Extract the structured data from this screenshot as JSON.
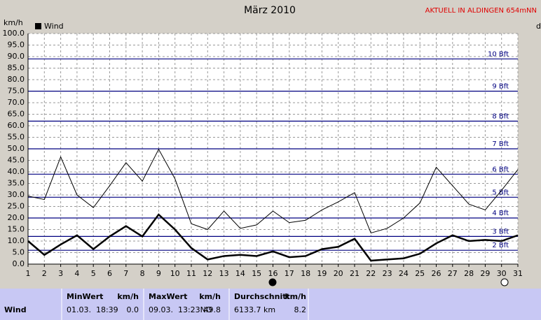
{
  "chart_data": {
    "type": "line",
    "title": "März 2010",
    "subtitle": "AKTUELL IN ALDINGEN 654mNN",
    "y_label": "km/h",
    "y2_label": "d",
    "x": [
      1,
      2,
      3,
      4,
      5,
      6,
      7,
      8,
      9,
      10,
      11,
      12,
      13,
      14,
      15,
      16,
      17,
      18,
      19,
      20,
      21,
      22,
      23,
      24,
      25,
      26,
      27,
      28,
      29,
      30,
      31
    ],
    "xlim": [
      1,
      31
    ],
    "xticks": [
      1,
      2,
      3,
      4,
      5,
      6,
      7,
      8,
      9,
      10,
      11,
      12,
      13,
      14,
      15,
      16,
      17,
      18,
      19,
      20,
      21,
      22,
      23,
      24,
      25,
      26,
      27,
      28,
      29,
      30,
      31
    ],
    "ylim": [
      0,
      100
    ],
    "yticks": [
      {
        "value": 0,
        "label": "0.0"
      },
      {
        "value": 5,
        "label": "5.0"
      },
      {
        "value": 10,
        "label": "10.0"
      },
      {
        "value": 15,
        "label": "15.0"
      },
      {
        "value": 20,
        "label": "20.0"
      },
      {
        "value": 25,
        "label": "25.0"
      },
      {
        "value": 30,
        "label": "30.0"
      },
      {
        "value": 35,
        "label": "35.0"
      },
      {
        "value": 40,
        "label": "40.0"
      },
      {
        "value": 45,
        "label": "45.0"
      },
      {
        "value": 50,
        "label": "50.0"
      },
      {
        "value": 55,
        "label": "55.0"
      },
      {
        "value": 60,
        "label": "60.0"
      },
      {
        "value": 65,
        "label": "65.0"
      },
      {
        "value": 70,
        "label": "70.0"
      },
      {
        "value": 75,
        "label": "75.0"
      },
      {
        "value": 80,
        "label": "80.0"
      },
      {
        "value": 85,
        "label": "85.0"
      },
      {
        "value": 90,
        "label": "90.0"
      },
      {
        "value": 95,
        "label": "95.0"
      },
      {
        "value": 100,
        "label": "100.0"
      }
    ],
    "grid": true,
    "reference_lines": [
      {
        "value": 6,
        "label": "2 Bft"
      },
      {
        "value": 12,
        "label": "3 Bft"
      },
      {
        "value": 20,
        "label": "4 Bft"
      },
      {
        "value": 29,
        "label": "5 Bft"
      },
      {
        "value": 39,
        "label": "6 Bft"
      },
      {
        "value": 50,
        "label": "7 Bft"
      },
      {
        "value": 62,
        "label": "8 Bft"
      },
      {
        "value": 75,
        "label": "9 Bft"
      },
      {
        "value": 89,
        "label": "10 Bft"
      }
    ],
    "reference_color": "#000080",
    "series": [
      {
        "name": "Wind",
        "color": "#000000",
        "width": 2.5,
        "values": [
          10,
          4,
          8.5,
          12.5,
          6.5,
          12,
          16.5,
          12,
          21.5,
          15,
          7,
          2,
          3.5,
          4,
          3.5,
          5.5,
          3,
          3.5,
          6.5,
          7.5,
          11,
          1.5,
          2,
          2.5,
          4.5,
          9,
          12.5,
          10,
          10.5,
          10,
          12.5
        ]
      },
      {
        "color": "#000000",
        "width": 1,
        "values": [
          29.5,
          28,
          46.5,
          30,
          24.5,
          34,
          44,
          36,
          49.8,
          37,
          17.5,
          15,
          23,
          15.5,
          17,
          23,
          18,
          19,
          23.5,
          27,
          31,
          13.5,
          15.5,
          20,
          26.5,
          42,
          34,
          26,
          23.5,
          32,
          41
        ]
      }
    ]
  },
  "stats": {
    "row_label": "Wind",
    "columns": [
      {
        "header": "MinWert",
        "unit": "km/h",
        "time": "01.03.  18:39",
        "value": "0.0"
      },
      {
        "header": "MaxWert",
        "unit": "km/h",
        "time": "09.03.  13:23NO",
        "value": "49.8"
      },
      {
        "header": "Durchschnitt",
        "unit": "km/h",
        "time": "6133.7 km",
        "value": "8.2"
      }
    ]
  }
}
